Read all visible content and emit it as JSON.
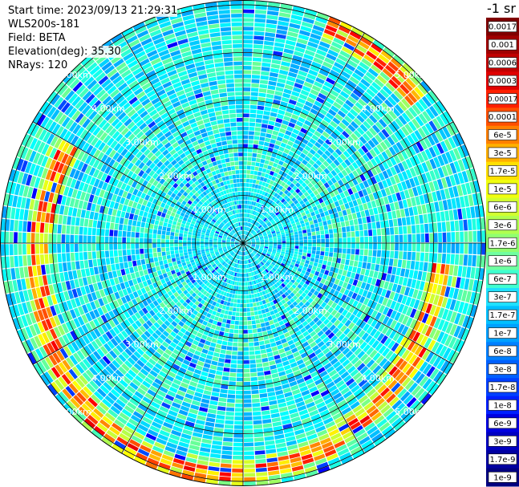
{
  "info": {
    "start_time": "Start time: 2023/09/13 21:29:31",
    "device": "WLS200s-181",
    "field": "Field: BETA",
    "elevation": "Elevation(deg): 35.30",
    "nrays": "NRays: 120"
  },
  "chart_data": {
    "type": "heatmap",
    "projection": "polar-ppi",
    "rays": 120,
    "range_rings": [
      "1.00km",
      "2.00km",
      "3.00km",
      "4.00km",
      "5.00km"
    ],
    "ring_km": [
      1,
      2,
      3,
      4,
      5
    ],
    "max_range_km": 5.1,
    "colorbar": {
      "unit_label": "-1 sr",
      "ticks": [
        "0.0017",
        "0.001",
        "0.0006",
        "0.0003",
        "0.00017",
        "0.0001",
        "6e-5",
        "3e-5",
        "1.7e-5",
        "1e-5",
        "6e-6",
        "3e-6",
        "1.7e-6",
        "1e-6",
        "6e-7",
        "3e-7",
        "1.7e-7",
        "1e-7",
        "6e-8",
        "3e-8",
        "1.7e-8",
        "1e-8",
        "6e-9",
        "3e-9",
        "1.7e-9",
        "1e-9"
      ],
      "colors": [
        "#800000",
        "#a00000",
        "#c00000",
        "#e00000",
        "#ff2000",
        "#ff5000",
        "#ff8000",
        "#ffb000",
        "#ffe000",
        "#f0ff10",
        "#d0ff30",
        "#b0ff50",
        "#90ff70",
        "#70ffa0",
        "#40ffd0",
        "#20e0ff",
        "#00c0ff",
        "#00a0ff",
        "#0080ff",
        "#0060ff",
        "#0040ff",
        "#0020ff",
        "#0000e0",
        "#0000c0",
        "#0000a0",
        "#000080"
      ]
    }
  }
}
